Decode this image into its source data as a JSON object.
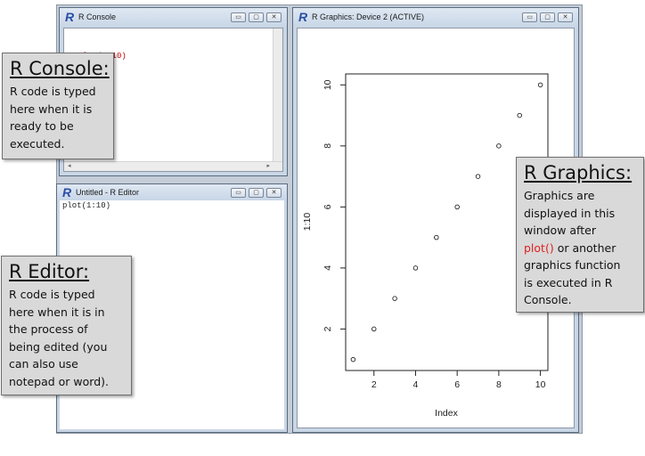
{
  "console_window": {
    "title": "R Console",
    "prompt1": "> ",
    "command": "plot(1:10)",
    "prompt2": "> "
  },
  "editor_window": {
    "title": "Untitled - R Editor",
    "code": "plot(1:10)"
  },
  "graphics_window": {
    "title": "R Graphics: Device 2 (ACTIVE)"
  },
  "window_controls": {
    "minimize": "▭",
    "maximize": "▢",
    "close": "✕"
  },
  "logo_letter": "R",
  "callouts": {
    "console": {
      "title": "R Console:",
      "lines": [
        "R code is typed",
        "here when it is",
        "ready to be",
        "executed."
      ]
    },
    "editor": {
      "title": "R Editor:",
      "lines": [
        "R code is typed",
        "here when it is in",
        "the process of",
        "being edited (you",
        "can also use",
        "notepad or word)."
      ]
    },
    "graphics": {
      "title": "R Graphics:",
      "line1": "Graphics are",
      "line2": "displayed in this",
      "line3": "window after",
      "code": "plot()",
      "line4_rest": " or another",
      "line5": "graphics function",
      "line6": "is executed in R",
      "line7": "Console."
    }
  },
  "colors": {
    "code_highlight": "#e02020",
    "console_command": "#c00000",
    "prompt": "#1f3a9e"
  },
  "chart_data": {
    "type": "scatter",
    "x": [
      1,
      2,
      3,
      4,
      5,
      6,
      7,
      8,
      9,
      10
    ],
    "y": [
      1,
      2,
      3,
      4,
      5,
      6,
      7,
      8,
      9,
      10
    ],
    "xlabel": "Index",
    "ylabel": "1:10",
    "xticks": [
      "2",
      "4",
      "6",
      "8",
      "10"
    ],
    "yticks": [
      "2",
      "4",
      "6",
      "8",
      "10"
    ],
    "xlim": [
      0.64,
      10.36
    ],
    "ylim": [
      0.64,
      10.36
    ],
    "grid": false,
    "marker": "open-circle"
  }
}
